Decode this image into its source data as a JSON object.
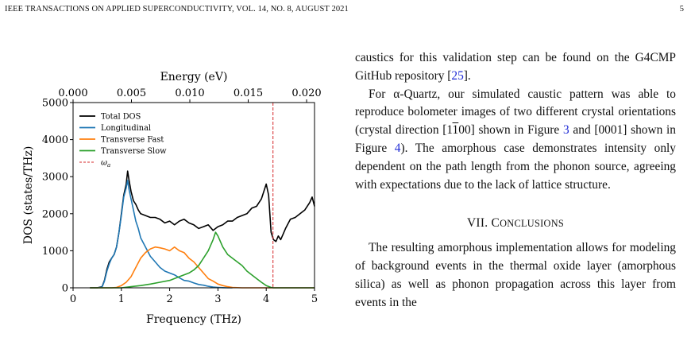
{
  "header": {
    "running_head": "IEEE TRANSACTIONS ON APPLIED SUPERCONDUCTIVITY, VOL. 14, NO. 8, AUGUST 2021",
    "page_number": "5"
  },
  "text": {
    "para1": "caustics for this validation step can be found on the G4CMP GitHub repository [",
    "para1_ref": "25",
    "para1_end": "].",
    "para2_a": "For α-Quartz, our simulated caustic pattern was able to reproduce bolometer images of two different crystal orientations (crystal direction [1",
    "para2_bar": "1",
    "para2_b": "00] shown in Figure ",
    "para2_fig3": "3",
    "para2_c": " and [0001] shown in Figure ",
    "para2_fig4": "4",
    "para2_d": "). The amorphous case demonstrates intensity only dependent on the path length from the phonon source, agreeing with expectations due to the lack of lattice structure.",
    "section_num": "VII. C",
    "section_rest": "ONCLUSIONS",
    "para3": "The resulting amorphous implementation allows for modeling of background events in the thermal oxide layer (amorphous silica) as well as phonon propagation across this layer from events in the"
  },
  "colors": {
    "total": "#000000",
    "longitudinal": "#1f77b4",
    "transverse_fast": "#ff7f0e",
    "transverse_slow": "#2ca02c",
    "omega": "#d62728",
    "link": "#1f2bd6"
  },
  "chart_data": {
    "type": "line",
    "xlabel": "Frequency (THz)",
    "ylabel": "DOS (states/THz)",
    "top_xlabel": "Energy (eV)",
    "xlim": [
      0,
      5
    ],
    "ylim": [
      0,
      5000
    ],
    "xticks": [
      0,
      1,
      2,
      3,
      4,
      5
    ],
    "yticks": [
      0,
      1000,
      2000,
      3000,
      4000,
      5000
    ],
    "top_ticks_ev": [
      0.0,
      0.005,
      0.01,
      0.015,
      0.02
    ],
    "top_tick_labels": [
      "0.000",
      "0.005",
      "0.010",
      "0.015",
      "0.020"
    ],
    "omega_a": 4.14,
    "legend_position": "upper-left",
    "series": [
      {
        "name": "Total DOS",
        "color": "#000000",
        "x": [
          0.35,
          0.5,
          0.6,
          0.65,
          0.7,
          0.75,
          0.8,
          0.85,
          0.9,
          0.95,
          1.0,
          1.05,
          1.1,
          1.13,
          1.16,
          1.2,
          1.25,
          1.3,
          1.35,
          1.4,
          1.5,
          1.6,
          1.7,
          1.8,
          1.9,
          2.0,
          2.1,
          2.2,
          2.3,
          2.4,
          2.5,
          2.6,
          2.7,
          2.8,
          2.9,
          3.0,
          3.1,
          3.2,
          3.3,
          3.4,
          3.5,
          3.6,
          3.7,
          3.8,
          3.9,
          4.0,
          4.05,
          4.1,
          4.15,
          4.2,
          4.25,
          4.3,
          4.35,
          4.4,
          4.5,
          4.6,
          4.7,
          4.8,
          4.9,
          4.95,
          5.0
        ],
        "y": [
          0,
          0,
          30,
          200,
          500,
          700,
          800,
          900,
          1100,
          1500,
          2000,
          2500,
          2800,
          3150,
          2900,
          2600,
          2350,
          2250,
          2100,
          2000,
          1950,
          1900,
          1900,
          1850,
          1750,
          1800,
          1700,
          1800,
          1850,
          1750,
          1700,
          1600,
          1650,
          1700,
          1550,
          1650,
          1700,
          1800,
          1800,
          1900,
          1950,
          2000,
          2150,
          2200,
          2400,
          2800,
          2500,
          1500,
          1300,
          1250,
          1400,
          1300,
          1450,
          1600,
          1850,
          1900,
          2000,
          2100,
          2300,
          2450,
          2200
        ]
      },
      {
        "name": "Longitudinal",
        "color": "#1f77b4",
        "x": [
          0.35,
          0.5,
          0.6,
          0.65,
          0.7,
          0.75,
          0.8,
          0.85,
          0.9,
          0.95,
          1.0,
          1.05,
          1.1,
          1.13,
          1.16,
          1.2,
          1.25,
          1.3,
          1.35,
          1.4,
          1.5,
          1.6,
          1.7,
          1.8,
          1.9,
          2.0,
          2.1,
          2.2,
          2.3,
          2.4,
          2.5,
          2.6,
          2.7,
          2.8,
          2.9,
          3.0,
          3.1,
          3.2,
          3.3
        ],
        "y": [
          0,
          0,
          20,
          180,
          450,
          650,
          800,
          900,
          1100,
          1500,
          1950,
          2450,
          2700,
          2900,
          2650,
          2400,
          2100,
          1800,
          1600,
          1350,
          1100,
          850,
          700,
          550,
          450,
          400,
          350,
          270,
          200,
          180,
          130,
          90,
          70,
          40,
          20,
          10,
          5,
          0,
          0
        ]
      },
      {
        "name": "Transverse Fast",
        "color": "#ff7f0e",
        "x": [
          0.35,
          0.8,
          0.9,
          1.0,
          1.1,
          1.2,
          1.3,
          1.4,
          1.5,
          1.6,
          1.7,
          1.8,
          1.9,
          2.0,
          2.1,
          2.2,
          2.3,
          2.4,
          2.5,
          2.6,
          2.7,
          2.8,
          2.9,
          3.0,
          3.1,
          3.2,
          3.3,
          3.5,
          5.0
        ],
        "y": [
          0,
          0,
          10,
          60,
          150,
          300,
          550,
          800,
          950,
          1050,
          1100,
          1080,
          1050,
          1000,
          1100,
          1000,
          950,
          800,
          700,
          550,
          400,
          250,
          180,
          100,
          60,
          30,
          10,
          0,
          0
        ]
      },
      {
        "name": "Transverse Slow",
        "color": "#2ca02c",
        "x": [
          0.35,
          1.0,
          1.2,
          1.4,
          1.6,
          1.8,
          2.0,
          2.2,
          2.4,
          2.5,
          2.6,
          2.7,
          2.8,
          2.9,
          2.95,
          3.0,
          3.1,
          3.2,
          3.3,
          3.4,
          3.5,
          3.6,
          3.7,
          3.8,
          3.9,
          4.0,
          4.1,
          4.15,
          5.0
        ],
        "y": [
          0,
          0,
          30,
          60,
          100,
          150,
          200,
          300,
          400,
          480,
          600,
          800,
          1000,
          1300,
          1500,
          1400,
          1100,
          900,
          800,
          700,
          600,
          450,
          350,
          250,
          150,
          60,
          10,
          0,
          0
        ]
      }
    ]
  }
}
